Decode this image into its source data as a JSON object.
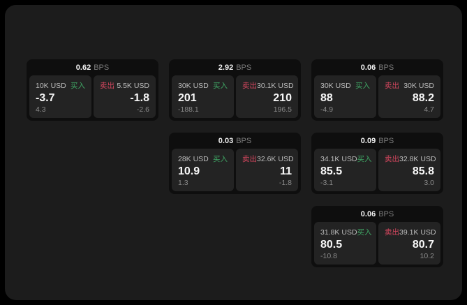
{
  "labels": {
    "bps_unit": "BPS",
    "buy": "买入",
    "sell": "卖出"
  },
  "colors": {
    "buy_green": "#3fa564",
    "sell_red": "#d6475f",
    "page_background": "#000000",
    "container_background": "#1c1c1c",
    "card_background": "#0e0e0e",
    "panel_background": "#232323"
  },
  "cards": [
    {
      "bps": "0.62",
      "buy": {
        "amount": "10K USD",
        "value": "-3.7",
        "delta": "4.3"
      },
      "sell": {
        "amount": "5.5K USD",
        "value": "-1.8",
        "delta": "-2.6"
      }
    },
    {
      "bps": "2.92",
      "buy": {
        "amount": "30K USD",
        "value": "201",
        "delta": "-188.1"
      },
      "sell": {
        "amount": "30.1K USD",
        "value": "210",
        "delta": "196.5"
      }
    },
    {
      "bps": "0.06",
      "buy": {
        "amount": "30K USD",
        "value": "88",
        "delta": "-4.9"
      },
      "sell": {
        "amount": "30K USD",
        "value": "88.2",
        "delta": "4.7"
      }
    },
    {
      "bps": "0.03",
      "buy": {
        "amount": "28K USD",
        "value": "10.9",
        "delta": "1.3"
      },
      "sell": {
        "amount": "32.6K USD",
        "value": "11",
        "delta": "-1.8"
      }
    },
    {
      "bps": "0.09",
      "buy": {
        "amount": "34.1K USD",
        "value": "85.5",
        "delta": "-3.1"
      },
      "sell": {
        "amount": "32.8K USD",
        "value": "85.8",
        "delta": "3.0"
      }
    },
    {
      "bps": "0.06",
      "buy": {
        "amount": "31.8K USD",
        "value": "80.5",
        "delta": "-10.8"
      },
      "sell": {
        "amount": "39.1K USD",
        "value": "80.7",
        "delta": "10.2"
      }
    }
  ]
}
